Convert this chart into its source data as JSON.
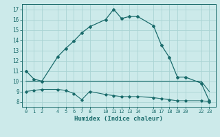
{
  "xlabel": "Humidex (Indice chaleur)",
  "bg_color": "#cceaea",
  "grid_color": "#aad4d4",
  "line_color": "#1a6b6b",
  "xlim": [
    -0.5,
    23.8
  ],
  "ylim": [
    7.5,
    17.5
  ],
  "xticks": [
    0,
    1,
    2,
    4,
    5,
    6,
    7,
    8,
    10,
    11,
    12,
    13,
    14,
    16,
    17,
    18,
    19,
    20,
    22,
    23
  ],
  "yticks": [
    8,
    9,
    10,
    11,
    12,
    13,
    14,
    15,
    16,
    17
  ],
  "line1_x": [
    0,
    1,
    2,
    4,
    5,
    6,
    7,
    8,
    10,
    11,
    12,
    13,
    14,
    16,
    17,
    18,
    19,
    20,
    22,
    23
  ],
  "line1_y": [
    11.0,
    10.2,
    10.0,
    12.4,
    13.2,
    13.9,
    14.7,
    15.3,
    16.0,
    17.0,
    16.1,
    16.3,
    16.3,
    15.4,
    13.5,
    12.3,
    10.4,
    10.4,
    9.8,
    8.1
  ],
  "line2_x": [
    0,
    1,
    2,
    4,
    5,
    6,
    7,
    8,
    10,
    11,
    12,
    13,
    14,
    16,
    17,
    18,
    19,
    20,
    22,
    23
  ],
  "line2_y": [
    10.0,
    10.0,
    10.0,
    10.0,
    10.0,
    10.0,
    10.0,
    10.0,
    10.0,
    10.0,
    10.0,
    10.0,
    10.0,
    10.0,
    10.0,
    10.0,
    10.0,
    10.0,
    10.0,
    9.0
  ],
  "line3_x": [
    0,
    1,
    2,
    4,
    5,
    6,
    7,
    8,
    10,
    11,
    12,
    13,
    14,
    16,
    17,
    18,
    19,
    20,
    22,
    23
  ],
  "line3_y": [
    9.0,
    9.1,
    9.2,
    9.2,
    9.1,
    8.8,
    8.2,
    9.0,
    8.7,
    8.6,
    8.5,
    8.5,
    8.5,
    8.4,
    8.3,
    8.2,
    8.1,
    8.1,
    8.1,
    8.0
  ]
}
